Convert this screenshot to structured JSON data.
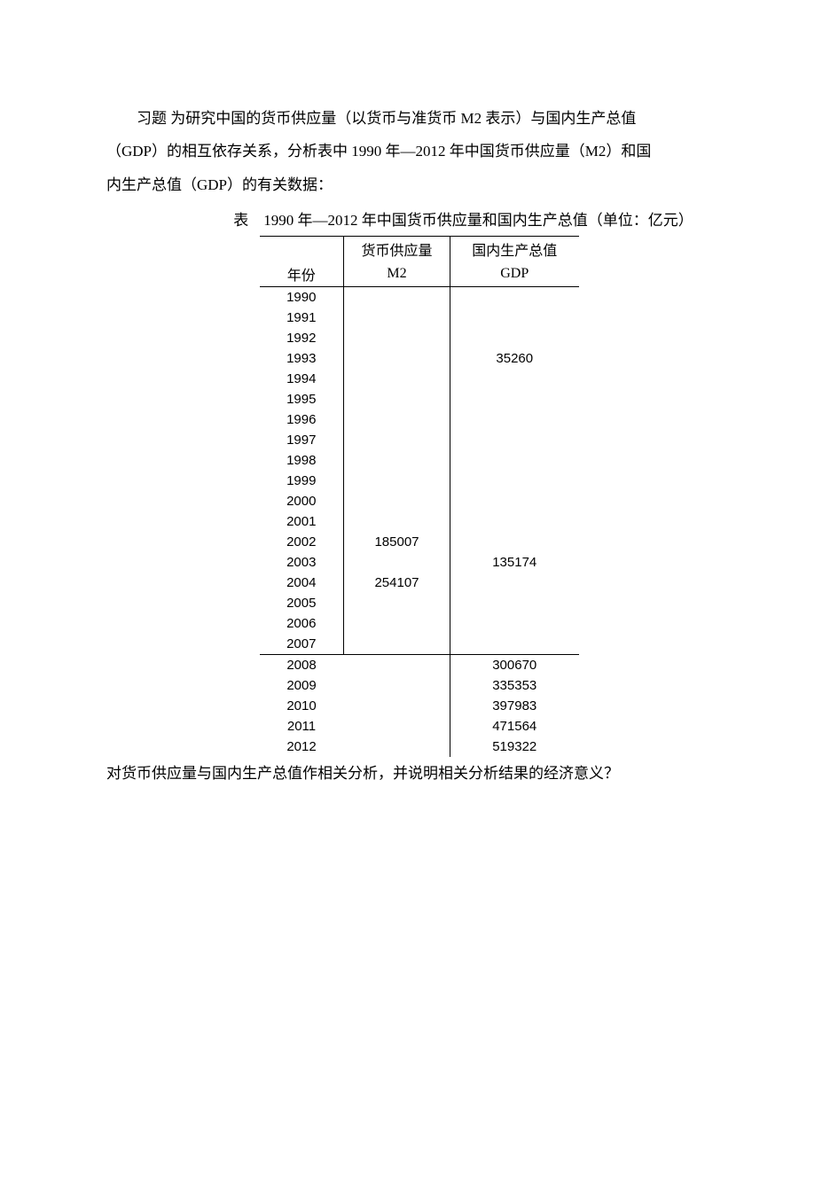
{
  "intro": {
    "line1": "习题 为研究中国的货币供应量（以货币与准货币 M2 表示）与国内生产总值",
    "line2": "（GDP）的相互依存关系，分析表中 1990 年—2012 年中国货币供应量（M2）和国",
    "line3": "内生产总值（GDP）的有关数据："
  },
  "table": {
    "caption": "表　1990 年—2012 年中国货币供应量和国内生产总值（单位：亿元）",
    "headers": {
      "h1_col2": "货币供应量",
      "h1_col3": "国内生产总值",
      "h2_col1": "年份",
      "h2_col2": "M2",
      "h2_col3": "GDP"
    },
    "rows_main": [
      {
        "year": "1990",
        "m2": "",
        "gdp": ""
      },
      {
        "year": "1991",
        "m2": "",
        "gdp": ""
      },
      {
        "year": "1992",
        "m2": "",
        "gdp": ""
      },
      {
        "year": "1993",
        "m2": "",
        "gdp": "35260"
      },
      {
        "year": "1994",
        "m2": "",
        "gdp": ""
      },
      {
        "year": "1995",
        "m2": "",
        "gdp": ""
      },
      {
        "year": "1996",
        "m2": "",
        "gdp": ""
      },
      {
        "year": "1997",
        "m2": "",
        "gdp": ""
      },
      {
        "year": "1998",
        "m2": "",
        "gdp": ""
      },
      {
        "year": "1999",
        "m2": "",
        "gdp": ""
      },
      {
        "year": "2000",
        "m2": "",
        "gdp": ""
      },
      {
        "year": "2001",
        "m2": "",
        "gdp": ""
      },
      {
        "year": "2002",
        "m2": "185007",
        "gdp": ""
      },
      {
        "year": "2003",
        "m2": "",
        "gdp": "135174"
      },
      {
        "year": "2004",
        "m2": "254107",
        "gdp": ""
      },
      {
        "year": "2005",
        "m2": "",
        "gdp": ""
      },
      {
        "year": "2006",
        "m2": "",
        "gdp": ""
      },
      {
        "year": "2007",
        "m2": "",
        "gdp": ""
      }
    ],
    "rows_bottom": [
      {
        "year": "2008",
        "m2": "",
        "gdp": "300670"
      },
      {
        "year": "2009",
        "m2": "",
        "gdp": "335353"
      },
      {
        "year": "2010",
        "m2": "",
        "gdp": "397983"
      },
      {
        "year": "2011",
        "m2": "",
        "gdp": "471564"
      },
      {
        "year": "2012",
        "m2": "",
        "gdp": "519322"
      }
    ]
  },
  "question": "对货币供应量与国内生产总值作相关分析，并说明相关分析结果的经济意义？",
  "styling": {
    "page_bg": "#ffffff",
    "text_color": "#000000",
    "body_fontsize": 17,
    "table_fontsize": 15,
    "line_height": 2.2,
    "border_color": "#000000",
    "font_family_body": "SimSun",
    "font_family_numbers": "Arial"
  }
}
